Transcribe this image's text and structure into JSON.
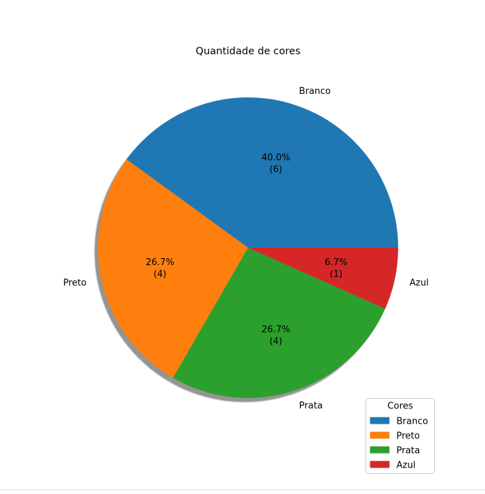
{
  "chart_data": {
    "type": "pie",
    "title": "Quantidade de cores",
    "categories": [
      "Branco",
      "Preto",
      "Prata",
      "Azul"
    ],
    "values": [
      6,
      4,
      4,
      1
    ],
    "percent_labels": [
      "40.0%",
      "26.7%",
      "26.7%",
      "6.7%"
    ],
    "count_labels": [
      "(6)",
      "(4)",
      "(4)",
      "(1)"
    ],
    "colors": [
      "#1f77b4",
      "#ff7f0e",
      "#2ca02c",
      "#d62728"
    ],
    "shadow": true,
    "start_angle_deg": 0,
    "direction": "counterclockwise",
    "legend": {
      "title": "Cores",
      "placement": "lower-right",
      "entries": [
        "Branco",
        "Preto",
        "Prata",
        "Azul"
      ]
    }
  }
}
